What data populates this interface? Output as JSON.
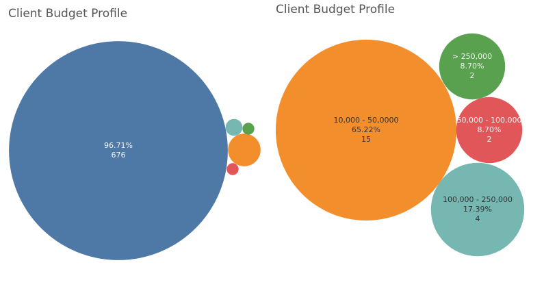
{
  "chart_data": [
    {
      "type": "bubble",
      "title": "Client Budget Profile",
      "categories": [
        null,
        null,
        null,
        null,
        null
      ],
      "values": [
        676,
        15,
        4,
        2,
        2
      ],
      "percents": [
        96.71,
        null,
        null,
        null,
        null
      ],
      "percent_labels": [
        "96.71%",
        null,
        null,
        null,
        null
      ],
      "colors": [
        "#4e79a7",
        "#f28e2b",
        "#76b7b2",
        "#59a14f",
        "#e15759"
      ]
    },
    {
      "type": "bubble",
      "title": "Client Budget Profile",
      "categories": [
        "10,000 - 50,0000",
        "> 250,000",
        "50,000 - 100,000",
        "100,000 - 250,000"
      ],
      "values": [
        15,
        2,
        2,
        4
      ],
      "percents": [
        65.22,
        8.7,
        8.7,
        17.39
      ],
      "percent_labels": [
        "65.22%",
        "8.70%",
        "8.70%",
        "17.39%"
      ],
      "colors": [
        "#f28e2b",
        "#59a14f",
        "#e15759",
        "#76b7b2"
      ]
    }
  ]
}
